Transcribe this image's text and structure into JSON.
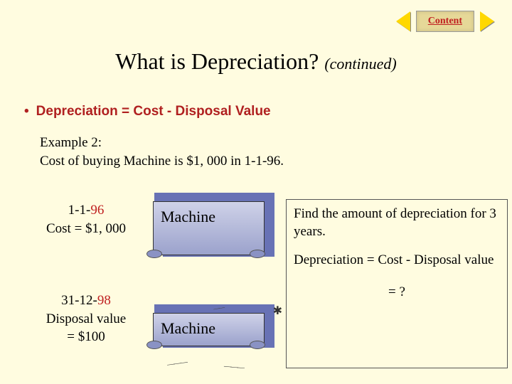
{
  "nav": {
    "content_label": "Content"
  },
  "title": {
    "main": "What is Depreciation?",
    "suffix": "(continued)"
  },
  "formula": {
    "bullet": "•",
    "text": "Depreciation = Cost - Disposal Value"
  },
  "example": {
    "header": "Example 2:",
    "line1": "Cost of buying Machine is $1, 000 in 1-1-96."
  },
  "label1": {
    "date_prefix": "1-1-",
    "date_year": "96",
    "cost": "Cost = $1, 000"
  },
  "label2": {
    "date_prefix": "31-12-",
    "date_year": "98",
    "dv1": "Disposal value",
    "dv2": "= $100"
  },
  "machine_label": "Machine",
  "rightbox": {
    "q": "Find the amount of depreciation for 3 years.",
    "eq": "Depreciation = Cost - Disposal value",
    "ans": "= ?"
  }
}
